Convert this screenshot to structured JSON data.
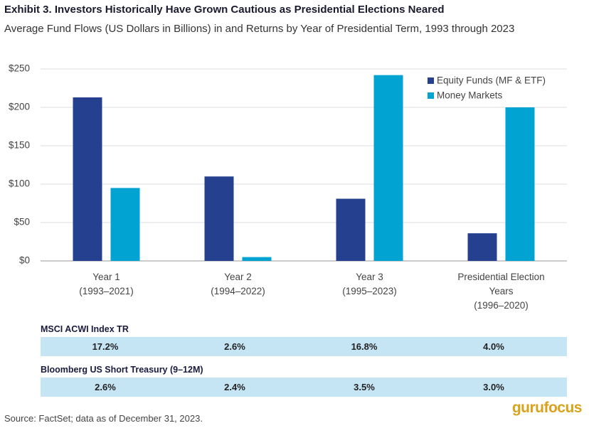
{
  "chart_data": {
    "type": "bar",
    "title": "Exhibit 3. Investors Historically Have Grown Cautious as Presidential Elections Neared",
    "subtitle": "Average Fund Flows (US Dollars in Billions) in and Returns by Year of Presidential Term, 1993 through 2023",
    "categories": [
      "Year 1\n(1993–2021)",
      "Year 2\n(1994–2022)",
      "Year 3\n(1995–2023)",
      "Presidential Election\nYears\n(1996–2020)"
    ],
    "series": [
      {
        "name": "Equity Funds (MF & ETF)",
        "color": "#25408f",
        "values": [
          213,
          110,
          81,
          36
        ]
      },
      {
        "name": "Money Markets",
        "color": "#00a3d1",
        "values": [
          95,
          5,
          242,
          200
        ]
      }
    ],
    "ylim": [
      0,
      250
    ],
    "yticks": [
      {
        "value": 0,
        "label": "$0"
      },
      {
        "value": 50,
        "label": "$50"
      },
      {
        "value": 100,
        "label": "$100"
      },
      {
        "value": 150,
        "label": "$150"
      },
      {
        "value": 200,
        "label": "$200"
      },
      {
        "value": 250,
        "label": "$250"
      }
    ],
    "grid": true,
    "legend": "top-right"
  },
  "tables": [
    {
      "title": "MSCI ACWI Index TR",
      "cells": [
        "17.2%",
        "2.6%",
        "16.8%",
        "4.0%"
      ]
    },
    {
      "title": "Bloomberg US Short Treasury (9–12M)",
      "cells": [
        "2.6%",
        "2.4%",
        "3.5%",
        "3.0%"
      ]
    }
  ],
  "source": "Source: FactSet; data as of December 31, 2023.",
  "watermark": "gurufocus"
}
